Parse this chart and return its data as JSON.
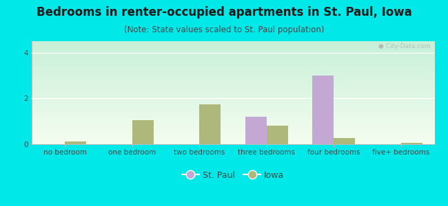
{
  "title": "Bedrooms in renter-occupied apartments in St. Paul, Iowa",
  "subtitle": "(Note: State values scaled to St. Paul population)",
  "categories": [
    "no bedroom",
    "one bedroom",
    "two bedrooms",
    "three bedrooms",
    "four bedrooms",
    "five+ bedrooms"
  ],
  "st_paul_values": [
    0,
    0,
    0,
    1.2,
    3.0,
    0
  ],
  "iowa_values": [
    0.12,
    1.05,
    1.75,
    0.82,
    0.28,
    0.05
  ],
  "st_paul_color": "#c4a8d4",
  "iowa_color": "#adb87a",
  "background_color": "#00e8e8",
  "plot_bg_top": "#f5fdf0",
  "plot_bg_bottom": "#c8f0d8",
  "ylim": [
    0,
    4.5
  ],
  "yticks": [
    0,
    2,
    4
  ],
  "bar_width": 0.32,
  "title_fontsize": 12,
  "subtitle_fontsize": 8.5,
  "tick_fontsize": 7.5,
  "legend_fontsize": 9
}
